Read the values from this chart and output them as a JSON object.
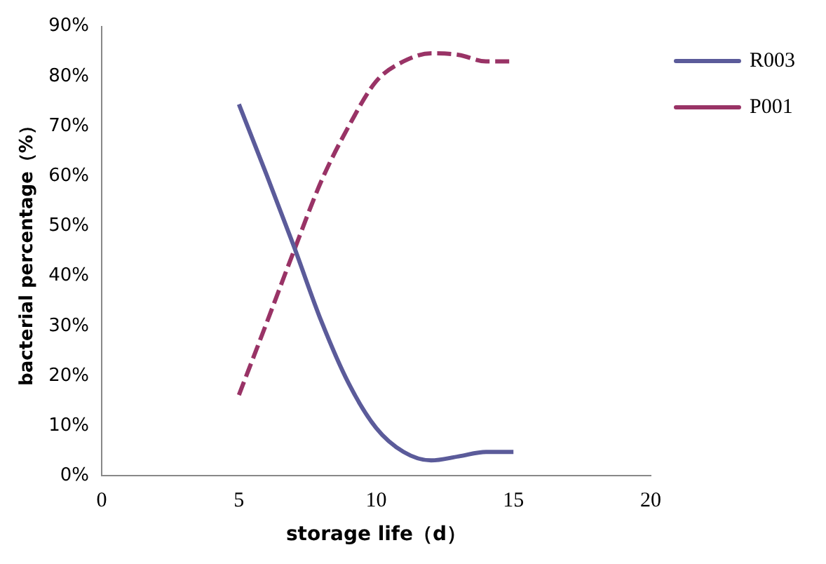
{
  "chart_data": {
    "type": "line",
    "xlabel": "storage life（d）",
    "ylabel": "bacterial percentage（%）",
    "xlim": [
      0,
      20
    ],
    "xticks": [
      0,
      5,
      10,
      15,
      20
    ],
    "ylim": [
      0,
      90
    ],
    "yticks": [
      {
        "value": 0,
        "label": "0%"
      },
      {
        "value": 10,
        "label": "10%"
      },
      {
        "value": 20,
        "label": "20%"
      },
      {
        "value": 30,
        "label": "30%"
      },
      {
        "value": 40,
        "label": "40%"
      },
      {
        "value": 50,
        "label": "50%"
      },
      {
        "value": 60,
        "label": "60%"
      },
      {
        "value": 70,
        "label": "70%"
      },
      {
        "value": 80,
        "label": "80%"
      },
      {
        "value": 90,
        "label": "90%"
      }
    ],
    "grid": false,
    "legend": "top right",
    "marker": "none",
    "series": [
      {
        "name": "R003",
        "color": "#5b5b9a",
        "line_style": "solid",
        "x": [
          5,
          6,
          7,
          8,
          9,
          10,
          11,
          12,
          13,
          14,
          15
        ],
        "values": [
          74.4,
          60.4,
          46,
          31,
          18.5,
          9.6,
          4.8,
          3.1,
          3.9,
          4.8,
          4.8
        ]
      },
      {
        "name": "P001",
        "color": "#993366",
        "line_style": "dashed",
        "x": [
          5,
          6,
          7,
          8,
          9,
          10,
          11,
          12,
          13,
          14,
          15
        ],
        "values": [
          16.2,
          30.5,
          45,
          59,
          70,
          79,
          83,
          84.6,
          84.3,
          83,
          83
        ]
      }
    ]
  }
}
